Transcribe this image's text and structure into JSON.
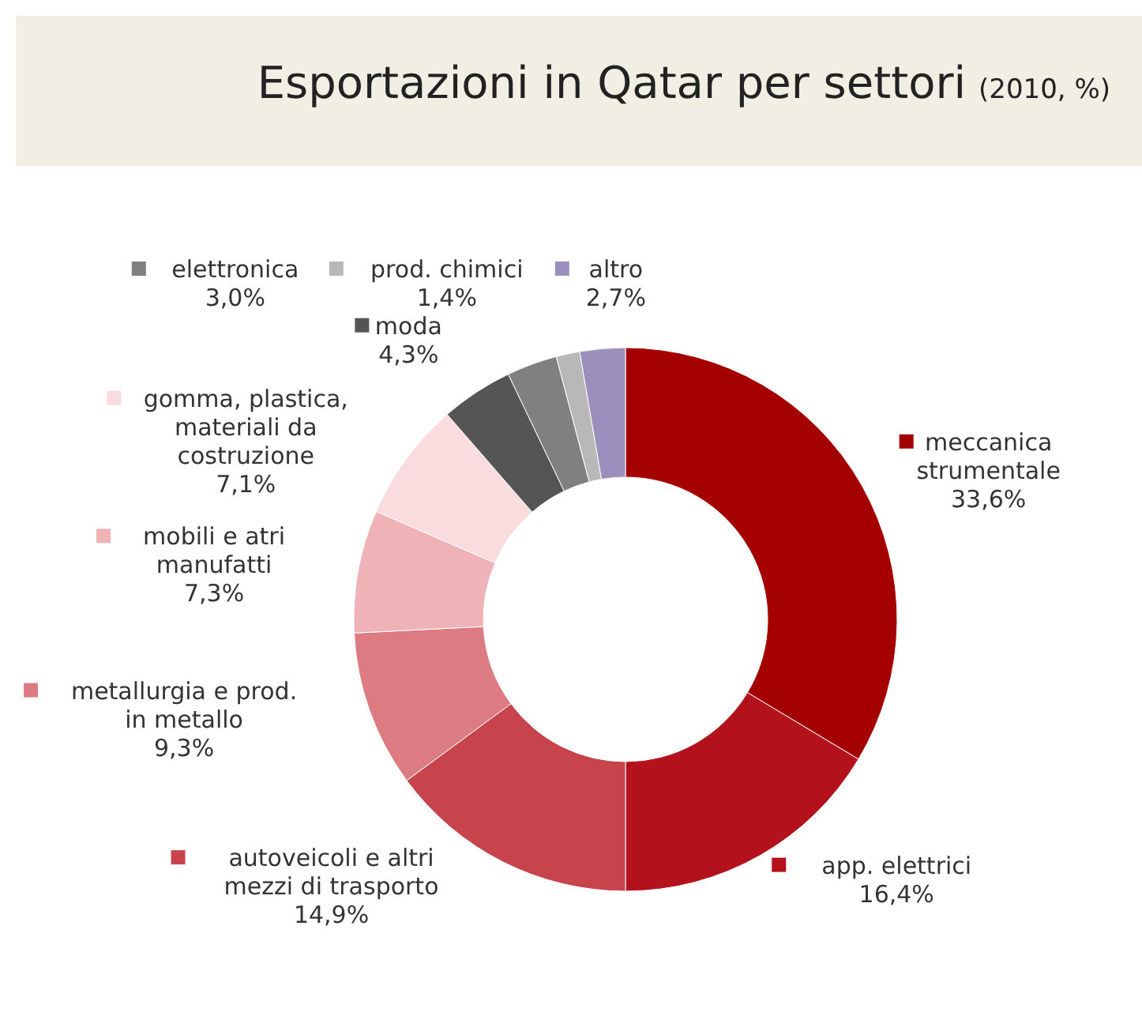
{
  "chart_data": {
    "type": "donut",
    "title": "Esportazioni in Qatar per settori",
    "subtitle": "(2010, %)",
    "categories": [
      "meccanica strumentale",
      "app. elettrici",
      "autoveicoli e altri mezzi di trasporto",
      "metallurgia e prod. in metallo",
      "mobili e atri manufatti",
      "gomma, plastica, materiali da costruzione",
      "moda",
      "elettronica",
      "prod. chimici",
      "altro"
    ],
    "values": [
      33.6,
      16.4,
      14.9,
      9.3,
      7.3,
      7.1,
      4.3,
      3.0,
      1.4,
      2.7
    ],
    "value_labels": [
      "33,6%",
      "16,4%",
      "14,9%",
      "9,3%",
      "7,3%",
      "7,1%",
      "4,3%",
      "3,0%",
      "1,4%",
      "2,7%"
    ],
    "legend": "left",
    "colors": [
      "#a50000",
      "#b3121c",
      "#c8444c",
      "#dc7c82",
      "#efb2b6",
      "#fadcde",
      "#555555",
      "#808080",
      "#b8b8b8",
      "#9b8fbd"
    ]
  }
}
